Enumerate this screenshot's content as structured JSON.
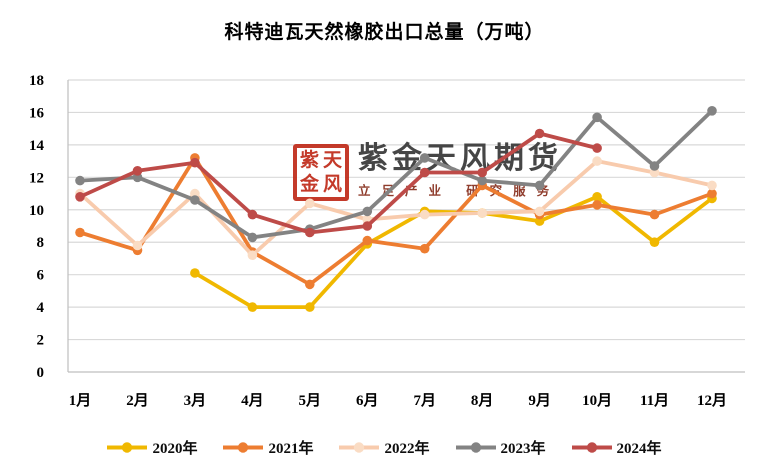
{
  "watermark": {
    "seal_chars": [
      "紫",
      "天",
      "金",
      "风"
    ],
    "brand": "紫金天风期货",
    "tagline": "立足产业 研究服务",
    "seal_color": "#C1301F",
    "brand_color": "#3D3D3D",
    "tagline_color": "#8A3322"
  },
  "chart_data": {
    "type": "line",
    "title": "科特迪瓦天然橡胶出口总量（万吨）",
    "categories": [
      "1月",
      "2月",
      "3月",
      "4月",
      "5月",
      "6月",
      "7月",
      "8月",
      "9月",
      "10月",
      "11月",
      "12月"
    ],
    "series": [
      {
        "name": "2020年",
        "color": "#F0B800",
        "values": [
          null,
          null,
          6.1,
          4.0,
          4.0,
          7.9,
          9.9,
          9.8,
          9.3,
          10.8,
          8.0,
          10.7
        ]
      },
      {
        "name": "2021年",
        "color": "#ED7D31",
        "values": [
          8.6,
          7.5,
          13.2,
          7.4,
          5.4,
          8.1,
          7.6,
          11.5,
          9.7,
          10.3,
          9.7,
          11.0
        ]
      },
      {
        "name": "2022年",
        "color": "#F8CBAD",
        "marker_color": "#FADCC4",
        "values": [
          11.0,
          7.8,
          11.0,
          7.2,
          10.4,
          9.4,
          9.7,
          9.8,
          9.9,
          13.0,
          12.3,
          11.5
        ]
      },
      {
        "name": "2023年",
        "color": "#838383",
        "values": [
          11.8,
          12.0,
          10.6,
          8.3,
          8.8,
          9.9,
          13.2,
          11.8,
          11.5,
          15.7,
          12.7,
          16.1
        ]
      },
      {
        "name": "2024年",
        "color": "#BE4B48",
        "values": [
          10.8,
          12.4,
          12.9,
          9.7,
          8.6,
          9.0,
          12.3,
          12.3,
          14.7,
          13.8,
          null,
          null
        ]
      }
    ],
    "ylim": [
      0,
      18
    ],
    "ytick_step": 2,
    "grid": true,
    "legend_position": "bottom",
    "gridline_color": "#D9D9D9",
    "axis_color": "#BFBFBF",
    "tick_label_color": "#000000"
  }
}
